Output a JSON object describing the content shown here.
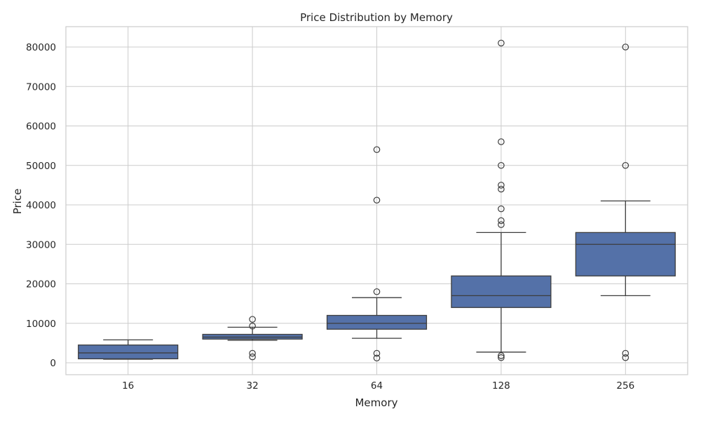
{
  "chart_data": {
    "type": "box",
    "title": "Price Distribution by Memory",
    "xlabel": "Memory",
    "ylabel": "Price",
    "categories": [
      "16",
      "32",
      "64",
      "128",
      "256"
    ],
    "ylim": [
      -3000,
      85000
    ],
    "yticks": [
      0,
      10000,
      20000,
      30000,
      40000,
      50000,
      60000,
      70000,
      80000
    ],
    "grid": true,
    "box_color": "#5471a8",
    "line_color": "#3d3d3d",
    "boxes": [
      {
        "category": "16",
        "whisker_low": 900,
        "q1": 1000,
        "median": 2500,
        "q3": 4500,
        "whisker_high": 5800,
        "fliers": []
      },
      {
        "category": "32",
        "whisker_low": 5700,
        "q1": 6000,
        "median": 6500,
        "q3": 7200,
        "whisker_high": 9000,
        "fliers": [
          11000,
          9300,
          2400,
          1500
        ]
      },
      {
        "category": "64",
        "whisker_low": 6200,
        "q1": 8500,
        "median": 10000,
        "q3": 12000,
        "whisker_high": 16500,
        "fliers": [
          54000,
          41200,
          18000,
          2400,
          1200
        ]
      },
      {
        "category": "128",
        "whisker_low": 2700,
        "q1": 14000,
        "median": 17000,
        "q3": 22000,
        "whisker_high": 33000,
        "fliers": [
          81000,
          56000,
          50000,
          45000,
          44000,
          39000,
          36000,
          35000,
          1800,
          1300
        ]
      },
      {
        "category": "256",
        "whisker_low": 17000,
        "q1": 22000,
        "median": 30000,
        "q3": 33000,
        "whisker_high": 41000,
        "fliers": [
          80000,
          50000,
          2400,
          1300
        ]
      }
    ]
  }
}
